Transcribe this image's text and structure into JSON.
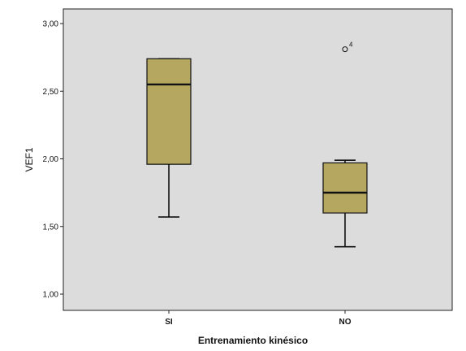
{
  "chart_data": {
    "type": "boxplot",
    "xlabel": "Entrenamiento kinésico",
    "ylabel": "VEF1",
    "ylim": [
      1.0,
      3.0
    ],
    "yticks": [
      "1,00",
      "1,50",
      "2,00",
      "2,50",
      "3,00"
    ],
    "ytick_values": [
      1.0,
      1.5,
      2.0,
      2.5,
      3.0
    ],
    "grid": false,
    "background_color": "#dcdcdc",
    "box_color": "#b5a760",
    "categories": [
      "SI",
      "NO"
    ],
    "boxes": [
      {
        "category": "SI",
        "whisker_low": 1.57,
        "q1": 1.96,
        "median": 2.55,
        "q3": 2.74,
        "whisker_high": 2.74,
        "outliers": []
      },
      {
        "category": "NO",
        "whisker_low": 1.35,
        "q1": 1.6,
        "median": 1.75,
        "q3": 1.97,
        "whisker_high": 1.99,
        "outliers": [
          {
            "value": 2.81,
            "label": "4"
          }
        ]
      }
    ]
  }
}
